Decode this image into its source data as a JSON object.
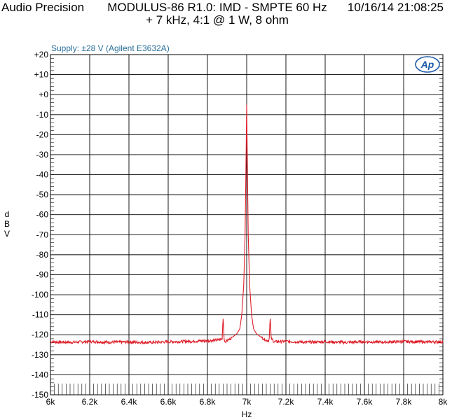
{
  "header": {
    "left": "Audio Precision",
    "title": "MODULUS-86 R1.0: IMD - SMPTE 60 Hz + 7 kHz, 4:1 @ 1 W, 8 ohm",
    "right": "10/16/14 21:08:25"
  },
  "annotation": {
    "supply": "Supply: ±28 V (Agilent E3632A)"
  },
  "logo": {
    "text": "Ap"
  },
  "colors": {
    "trace": "#dd1f2a",
    "grid": "#000000",
    "supply_text": "#2a6f9a",
    "logo": "#1e5aa8"
  },
  "chart_data": {
    "type": "line",
    "title": "MODULUS-86 R1.0: IMD - SMPTE 60 Hz + 7 kHz, 4:1 @ 1 W, 8 ohm",
    "xlabel": "Hz",
    "ylabel": "dBV",
    "xlim": [
      6000,
      8000
    ],
    "ylim": [
      -150,
      20
    ],
    "x_ticks": [
      6000,
      6200,
      6400,
      6600,
      6800,
      7000,
      7200,
      7400,
      7600,
      7800,
      8000
    ],
    "x_tick_labels": [
      "6k",
      "6.2k",
      "6.4k",
      "6.6k",
      "6.8k",
      "7k",
      "7.2k",
      "7.4k",
      "7.6k",
      "7.8k",
      "8k"
    ],
    "y_ticks": [
      20,
      10,
      0,
      -10,
      -20,
      -30,
      -40,
      -50,
      -60,
      -70,
      -80,
      -90,
      -100,
      -110,
      -120,
      -130,
      -140,
      -150
    ],
    "y_tick_labels": [
      "+20",
      "+10",
      "+0",
      "-10",
      "-20",
      "-30",
      "-40",
      "-50",
      "-60",
      "-70",
      "-80",
      "-90",
      "-100",
      "-110",
      "-120",
      "-130",
      "-140",
      "-150"
    ],
    "grid": true,
    "series": [
      {
        "points": [
          [
            6000,
            -123.5
          ],
          [
            6100,
            -123.8
          ],
          [
            6200,
            -123.4
          ],
          [
            6300,
            -123.7
          ],
          [
            6400,
            -123.6
          ],
          [
            6500,
            -123.9
          ],
          [
            6600,
            -123.5
          ],
          [
            6700,
            -123.3
          ],
          [
            6800,
            -123.0
          ],
          [
            6860,
            -122.6
          ],
          [
            6875,
            -122.0
          ],
          [
            6878,
            -115.0
          ],
          [
            6880,
            -112.0
          ],
          [
            6882,
            -115.0
          ],
          [
            6885,
            -122.0
          ],
          [
            6890,
            -123.5
          ],
          [
            6910,
            -122.3
          ],
          [
            6930,
            -121.0
          ],
          [
            6950,
            -119.5
          ],
          [
            6965,
            -117.0
          ],
          [
            6975,
            -110.0
          ],
          [
            6985,
            -95.0
          ],
          [
            6992,
            -70.0
          ],
          [
            6997,
            -30.0
          ],
          [
            7000,
            -5.0
          ],
          [
            7003,
            -30.0
          ],
          [
            7008,
            -70.0
          ],
          [
            7015,
            -95.0
          ],
          [
            7025,
            -110.0
          ],
          [
            7035,
            -117.0
          ],
          [
            7050,
            -119.5
          ],
          [
            7070,
            -121.0
          ],
          [
            7090,
            -122.3
          ],
          [
            7110,
            -123.0
          ],
          [
            7115,
            -122.0
          ],
          [
            7118,
            -115.0
          ],
          [
            7120,
            -112.0
          ],
          [
            7122,
            -115.0
          ],
          [
            7125,
            -122.0
          ],
          [
            7140,
            -123.5
          ],
          [
            7200,
            -123.3
          ],
          [
            7300,
            -123.7
          ],
          [
            7400,
            -123.5
          ],
          [
            7500,
            -123.8
          ],
          [
            7600,
            -123.5
          ],
          [
            7700,
            -123.7
          ],
          [
            7800,
            -123.4
          ],
          [
            7900,
            -123.6
          ],
          [
            8000,
            -123.5
          ]
        ]
      }
    ]
  }
}
